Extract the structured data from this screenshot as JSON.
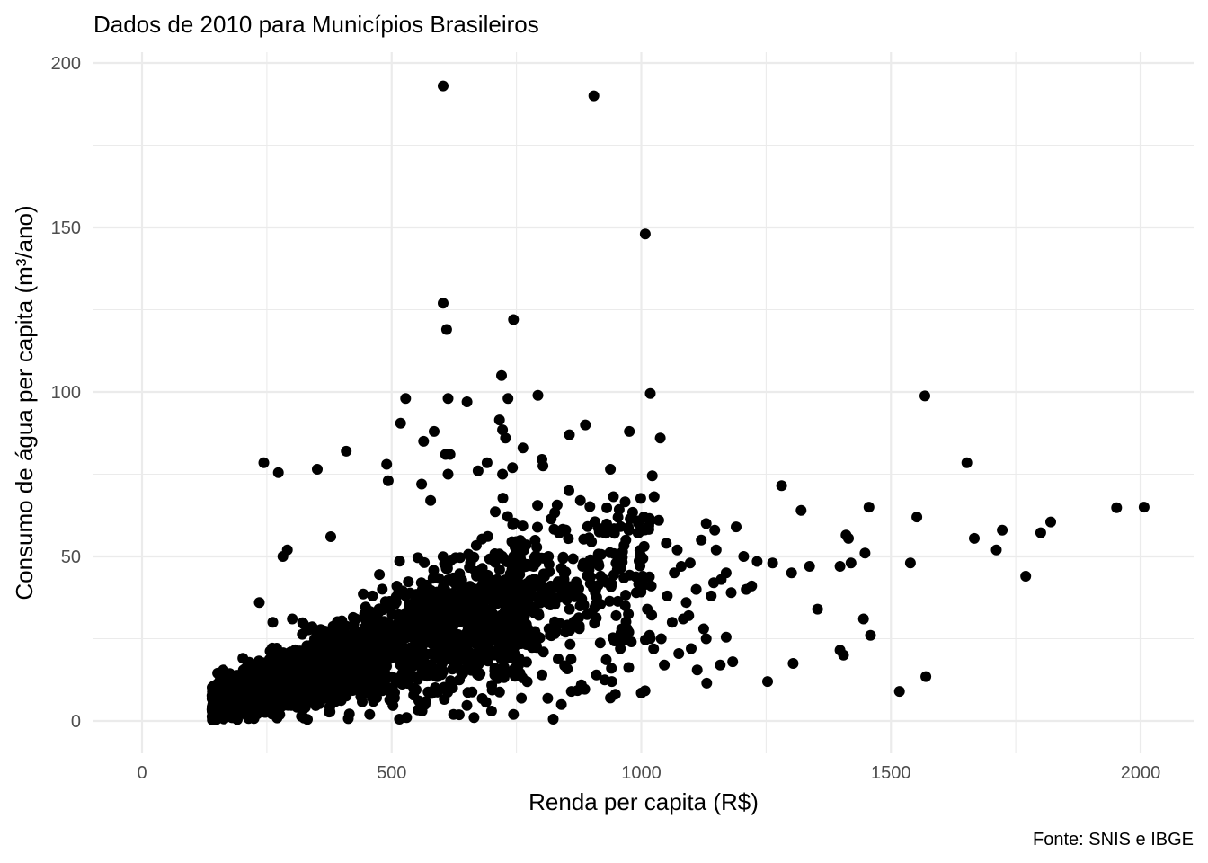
{
  "chart_data": {
    "type": "scatter",
    "title": "Dados de 2010 para Municípios Brasileiros",
    "xlabel": "Renda per capita (R$)",
    "ylabel": "Consumo de água per capita (m³/ano)",
    "caption": "Fonte: SNIS e IBGE",
    "xlim": [
      -190,
      2100
    ],
    "ylim": [
      -10,
      203
    ],
    "x_ticks": [
      0,
      500,
      1000,
      1500,
      2000
    ],
    "x_tick_labels": [
      "0",
      "500",
      "1000",
      "1500",
      "2000"
    ],
    "y_ticks": [
      0,
      50,
      100,
      150,
      200
    ],
    "y_tick_labels": [
      "0",
      "50",
      "100",
      "150",
      "200"
    ],
    "grid": true,
    "point_color": "#000000",
    "background": "#ffffff",
    "grid_color": "#ebebeb",
    "dense_cloud": {
      "count": 2200,
      "seed": 12345,
      "x_min": 120,
      "x_max": 1000,
      "note_shape": "y_center = 4 + 0.05*(x-120), spread grows with x"
    },
    "points": [
      [
        603,
        193
      ],
      [
        905,
        190
      ],
      [
        1008,
        148
      ],
      [
        603,
        127
      ],
      [
        610,
        119
      ],
      [
        744,
        122
      ],
      [
        720,
        105
      ],
      [
        1018,
        99.5
      ],
      [
        1568,
        98.8
      ],
      [
        528,
        98
      ],
      [
        613,
        98
      ],
      [
        651,
        97
      ],
      [
        733,
        98
      ],
      [
        793,
        99
      ],
      [
        518,
        90.5
      ],
      [
        564,
        85
      ],
      [
        585,
        88
      ],
      [
        716,
        91.5
      ],
      [
        722,
        88.5
      ],
      [
        856,
        87
      ],
      [
        888,
        90
      ],
      [
        976,
        88
      ],
      [
        1038,
        86
      ],
      [
        409,
        82
      ],
      [
        608,
        81
      ],
      [
        617,
        81
      ],
      [
        691,
        78.5
      ],
      [
        728,
        86
      ],
      [
        742,
        77
      ],
      [
        763,
        83
      ],
      [
        801,
        79.5
      ],
      [
        803,
        77.5
      ],
      [
        244,
        78.5
      ],
      [
        273,
        75.5
      ],
      [
        351,
        76.5
      ],
      [
        490,
        78
      ],
      [
        613,
        75
      ],
      [
        673,
        76
      ],
      [
        722,
        75
      ],
      [
        938,
        76.5
      ],
      [
        1022,
        74.5
      ],
      [
        1652,
        78.5
      ],
      [
        493,
        73
      ],
      [
        560,
        72
      ],
      [
        578,
        67
      ],
      [
        855,
        70
      ],
      [
        878,
        67
      ],
      [
        1281,
        71.5
      ],
      [
        1320,
        64
      ],
      [
        1456,
        65
      ],
      [
        1552,
        62
      ],
      [
        1667,
        55.5
      ],
      [
        1723,
        58
      ],
      [
        1800,
        57.2
      ],
      [
        1820,
        60.5
      ],
      [
        1952,
        64.8
      ],
      [
        2007,
        65
      ],
      [
        1410,
        56.5
      ],
      [
        1415,
        55.5
      ],
      [
        1711,
        52
      ],
      [
        1770,
        44
      ],
      [
        1448,
        51
      ],
      [
        1539,
        48
      ],
      [
        1398,
        47
      ],
      [
        1420,
        48
      ],
      [
        1337,
        47
      ],
      [
        1301,
        45
      ],
      [
        1232,
        48.5
      ],
      [
        1263,
        48
      ],
      [
        1150,
        52
      ],
      [
        1190,
        59
      ],
      [
        1221,
        41
      ],
      [
        1210,
        40
      ],
      [
        1180,
        39
      ],
      [
        1353,
        34
      ],
      [
        1445,
        31
      ],
      [
        1459,
        26
      ],
      [
        1570,
        13.5
      ],
      [
        1517,
        9
      ],
      [
        1398,
        21.5
      ],
      [
        1405,
        20
      ],
      [
        1304,
        17.5
      ],
      [
        1253,
        12
      ],
      [
        1183,
        18
      ],
      [
        1131,
        11.5
      ],
      [
        1112,
        15.5
      ],
      [
        1158,
        17
      ],
      [
        1130,
        25
      ],
      [
        1170,
        25.5
      ],
      [
        1100,
        22
      ],
      [
        1095,
        32
      ],
      [
        1140,
        38
      ],
      [
        1120,
        55
      ],
      [
        1130,
        60
      ],
      [
        1147,
        58
      ],
      [
        1080,
        47
      ],
      [
        1066,
        45
      ],
      [
        1084,
        31
      ],
      [
        1075,
        20.5
      ],
      [
        1046,
        17
      ],
      [
        1000,
        8.5
      ],
      [
        291,
        52
      ],
      [
        282,
        50
      ],
      [
        378,
        56
      ],
      [
        301,
        31
      ],
      [
        262,
        30
      ],
      [
        235,
        36
      ],
      [
        428,
        31
      ],
      [
        466,
        7
      ],
      [
        456,
        2
      ],
      [
        530,
        1
      ],
      [
        561,
        3
      ],
      [
        624,
        2
      ],
      [
        665,
        1
      ],
      [
        700,
        3
      ],
      [
        744,
        2
      ],
      [
        840,
        5
      ],
      [
        938,
        7
      ],
      [
        941,
        12
      ],
      [
        1170,
        45
      ],
      [
        1205,
        50
      ],
      [
        1160,
        43
      ],
      [
        1110,
        40
      ],
      [
        1098,
        48
      ],
      [
        1072,
        52
      ],
      [
        1050,
        54
      ],
      [
        1035,
        61
      ],
      [
        1005,
        62
      ],
      [
        975,
        58
      ],
      [
        960,
        51
      ],
      [
        990,
        39
      ],
      [
        1012,
        34
      ],
      [
        1062,
        30
      ],
      [
        1040,
        25
      ],
      [
        975,
        27
      ],
      [
        958,
        22
      ],
      [
        940,
        16
      ],
      [
        910,
        14
      ],
      [
        880,
        11
      ],
      [
        860,
        9
      ],
      [
        1003,
        44
      ],
      [
        1020,
        41
      ],
      [
        1052,
        38
      ],
      [
        952,
        46
      ],
      [
        925,
        43
      ],
      [
        898,
        49
      ],
      [
        968,
        35
      ],
      [
        1090,
        36
      ],
      [
        1125,
        28
      ],
      [
        1145,
        42
      ]
    ]
  }
}
